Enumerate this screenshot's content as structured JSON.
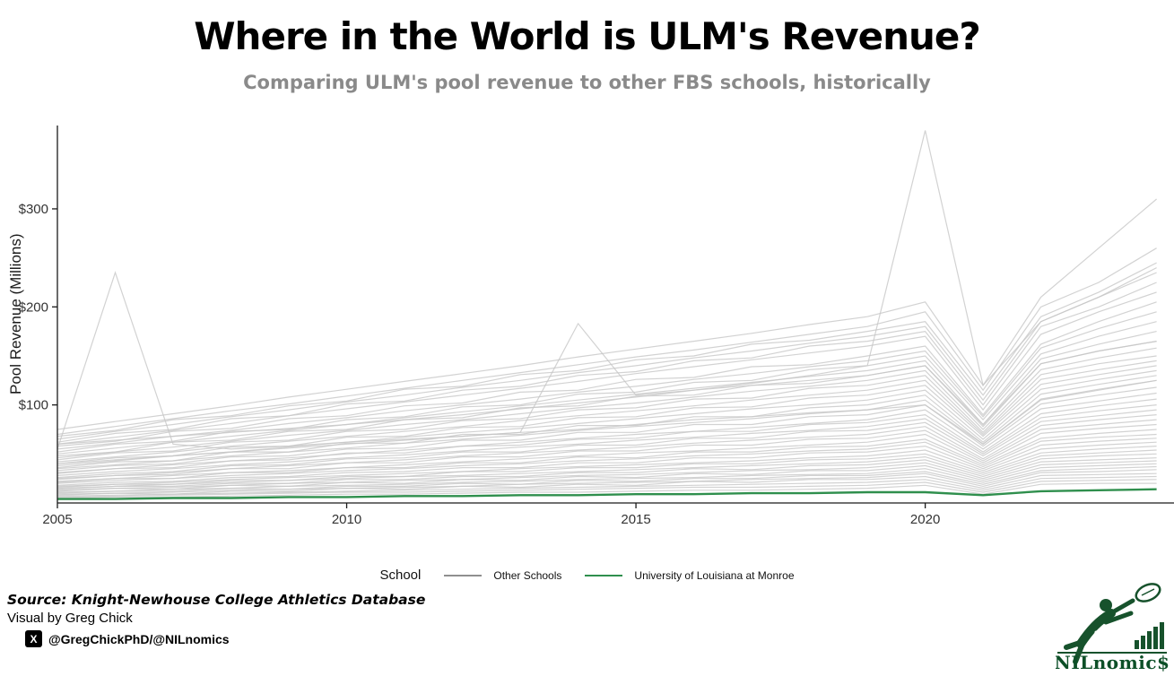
{
  "title": "Where in the World is ULM's Revenue?",
  "subtitle": "Comparing ULM's pool revenue to other FBS schools, historically",
  "legend": {
    "title": "School",
    "items": [
      {
        "label": "Other Schools"
      },
      {
        "label": "University of Louisiana at Monroe"
      }
    ]
  },
  "footer": {
    "source": "Source: Knight-Newhouse College Athletics Database",
    "credit": "Visual by Greg Chick",
    "social": "@GregChickPhD/@NILnomics"
  },
  "icons": {
    "x_logo_glyph": "X"
  },
  "logo": {
    "text": "NILnomic$",
    "dollar": "$",
    "color": "#17522c",
    "text_color": "#0c4f27"
  },
  "chart_data": {
    "type": "line",
    "title": "Where in the World is ULM's Revenue?",
    "xlabel": "",
    "ylabel": "Pool Revenue (Millions)",
    "x_range": [
      2005,
      2024.3
    ],
    "y_range": [
      0,
      385
    ],
    "grid": false,
    "legend_position": "bottom",
    "x_ticks": [
      2005,
      2010,
      2015,
      2020
    ],
    "x_tick_labels": [
      "2005",
      "2010",
      "2015",
      "2020"
    ],
    "y_tick_values": [
      100,
      200,
      300
    ],
    "y_tick_labels": [
      "$100",
      "$200",
      "$300"
    ],
    "colors": {
      "other_line": "#c7c7c7",
      "other_legend": "#8f8f8f",
      "ulm": "#2f8f4d",
      "axis": "#1a1a1a",
      "tick_text": "#333333"
    },
    "x": [
      2005,
      2006,
      2007,
      2008,
      2009,
      2010,
      2011,
      2012,
      2013,
      2014,
      2015,
      2016,
      2017,
      2018,
      2019,
      2020,
      2021,
      2022,
      2023,
      2024
    ],
    "ulm": {
      "name": "University of Louisiana at Monroe",
      "values": [
        4,
        4,
        5,
        5,
        6,
        6,
        7,
        7,
        8,
        8,
        9,
        9,
        10,
        10,
        11,
        11,
        8,
        12,
        13,
        14
      ]
    },
    "other_schools": [
      [
        75,
        83,
        91,
        99,
        108,
        116,
        124,
        132,
        140,
        149,
        157,
        165,
        173,
        182,
        190,
        205,
        120,
        210,
        260,
        310
      ],
      [
        70,
        78,
        86,
        94,
        101,
        109,
        117,
        125,
        133,
        141,
        149,
        156,
        164,
        172,
        180,
        195,
        115,
        200,
        225,
        260
      ],
      [
        68,
        74,
        85,
        89,
        99,
        104,
        116,
        119,
        131,
        135,
        146,
        150,
        162,
        166,
        175,
        185,
        110,
        190,
        215,
        245
      ],
      [
        65,
        73,
        80,
        88,
        95,
        103,
        110,
        118,
        125,
        133,
        140,
        148,
        155,
        163,
        170,
        180,
        105,
        185,
        210,
        235
      ],
      [
        62,
        71,
        75,
        86,
        89,
        101,
        104,
        115,
        119,
        130,
        134,
        145,
        148,
        160,
        165,
        175,
        100,
        180,
        200,
        225
      ],
      [
        60,
        67,
        74,
        81,
        89,
        96,
        103,
        110,
        117,
        124,
        132,
        139,
        146,
        153,
        160,
        170,
        95,
        172,
        195,
        215
      ],
      [
        58,
        63,
        73,
        76,
        86,
        89,
        99,
        102,
        113,
        115,
        126,
        128,
        139,
        141,
        150,
        160,
        90,
        162,
        185,
        205
      ],
      [
        55,
        61,
        68,
        74,
        81,
        87,
        94,
        100,
        106,
        113,
        119,
        126,
        132,
        139,
        145,
        155,
        88,
        158,
        178,
        195
      ],
      [
        52,
        60,
        63,
        73,
        75,
        85,
        88,
        98,
        100,
        111,
        113,
        123,
        125,
        136,
        140,
        150,
        85,
        152,
        170,
        185
      ],
      [
        50,
        56,
        62,
        68,
        74,
        80,
        87,
        93,
        99,
        105,
        111,
        117,
        123,
        129,
        135,
        145,
        80,
        147,
        162,
        175
      ],
      [
        48,
        52,
        62,
        64,
        73,
        75,
        85,
        87,
        97,
        99,
        109,
        110,
        120,
        122,
        130,
        140,
        78,
        142,
        155,
        165
      ],
      [
        46,
        52,
        57,
        63,
        69,
        74,
        80,
        85,
        91,
        97,
        102,
        108,
        114,
        119,
        125,
        135,
        75,
        136,
        148,
        158
      ],
      [
        44,
        51,
        53,
        62,
        64,
        73,
        75,
        84,
        86,
        95,
        97,
        106,
        107,
        117,
        120,
        130,
        72,
        131,
        142,
        150
      ],
      [
        42,
        47,
        52,
        58,
        63,
        68,
        73,
        78,
        84,
        89,
        94,
        99,
        105,
        110,
        115,
        125,
        70,
        126,
        136,
        145
      ],
      [
        40,
        46,
        48,
        57,
        58,
        67,
        68,
        77,
        78,
        87,
        88,
        97,
        98,
        107,
        110,
        120,
        68,
        121,
        131,
        140
      ],
      [
        38,
        43,
        48,
        52,
        57,
        62,
        67,
        72,
        76,
        81,
        86,
        91,
        96,
        100,
        105,
        115,
        65,
        116,
        126,
        135
      ],
      [
        36,
        42,
        43,
        52,
        52,
        61,
        61,
        70,
        70,
        79,
        79,
        88,
        88,
        97,
        100,
        110,
        62,
        111,
        121,
        130
      ],
      [
        35,
        39,
        43,
        48,
        52,
        56,
        61,
        65,
        69,
        74,
        78,
        82,
        86,
        91,
        95,
        105,
        60,
        106,
        116,
        125
      ],
      [
        33,
        38,
        40,
        47,
        48,
        55,
        56,
        64,
        64,
        72,
        72,
        80,
        80,
        88,
        90,
        100,
        58,
        101,
        110,
        118
      ],
      [
        31,
        35,
        39,
        43,
        46,
        50,
        54,
        58,
        62,
        66,
        70,
        73,
        77,
        81,
        85,
        95,
        55,
        96,
        104,
        112
      ],
      [
        30,
        35,
        36,
        43,
        44,
        51,
        51,
        58,
        59,
        65,
        66,
        73,
        73,
        80,
        82,
        90,
        52,
        91,
        99,
        106
      ],
      [
        28,
        32,
        35,
        39,
        42,
        46,
        49,
        53,
        57,
        60,
        64,
        67,
        71,
        74,
        78,
        86,
        50,
        87,
        94,
        100
      ],
      [
        26,
        30,
        32,
        38,
        39,
        45,
        46,
        52,
        52,
        59,
        59,
        66,
        66,
        73,
        74,
        82,
        48,
        83,
        89,
        95
      ],
      [
        25,
        28,
        31,
        35,
        38,
        41,
        44,
        48,
        51,
        54,
        57,
        61,
        64,
        67,
        70,
        78,
        45,
        79,
        85,
        90
      ],
      [
        24,
        28,
        29,
        35,
        35,
        41,
        41,
        47,
        47,
        53,
        53,
        59,
        59,
        65,
        66,
        74,
        43,
        75,
        80,
        85
      ],
      [
        22,
        25,
        28,
        31,
        33,
        36,
        39,
        42,
        45,
        48,
        51,
        53,
        56,
        59,
        62,
        70,
        41,
        71,
        76,
        80
      ],
      [
        21,
        25,
        25,
        31,
        31,
        36,
        36,
        41,
        41,
        47,
        46,
        52,
        52,
        57,
        58,
        65,
        39,
        66,
        71,
        75
      ],
      [
        20,
        23,
        25,
        28,
        30,
        33,
        35,
        38,
        40,
        43,
        45,
        48,
        50,
        53,
        55,
        62,
        37,
        63,
        67,
        70
      ],
      [
        18,
        21,
        22,
        26,
        27,
        31,
        32,
        36,
        36,
        41,
        41,
        46,
        46,
        51,
        52,
        58,
        35,
        59,
        63,
        66
      ],
      [
        17,
        19,
        21,
        24,
        26,
        28,
        30,
        32,
        35,
        37,
        39,
        41,
        43,
        46,
        48,
        54,
        33,
        55,
        59,
        62
      ],
      [
        16,
        19,
        19,
        23,
        23,
        27,
        27,
        32,
        32,
        36,
        36,
        40,
        40,
        44,
        45,
        50,
        31,
        51,
        55,
        58
      ],
      [
        15,
        17,
        19,
        21,
        23,
        25,
        27,
        28,
        30,
        32,
        34,
        36,
        38,
        40,
        42,
        47,
        29,
        48,
        51,
        54
      ],
      [
        14,
        17,
        17,
        20,
        20,
        24,
        24,
        27,
        27,
        31,
        31,
        35,
        34,
        38,
        39,
        44,
        27,
        45,
        48,
        50
      ],
      [
        13,
        15,
        16,
        18,
        20,
        21,
        23,
        24,
        26,
        28,
        29,
        31,
        33,
        34,
        36,
        41,
        25,
        42,
        44,
        46
      ],
      [
        12,
        15,
        14,
        18,
        17,
        21,
        20,
        24,
        23,
        27,
        26,
        30,
        29,
        33,
        33,
        38,
        23,
        39,
        41,
        43
      ],
      [
        11,
        12,
        14,
        15,
        17,
        18,
        19,
        21,
        22,
        24,
        25,
        26,
        28,
        29,
        30,
        35,
        21,
        36,
        38,
        40
      ],
      [
        10,
        12,
        12,
        15,
        14,
        17,
        17,
        20,
        19,
        23,
        22,
        25,
        25,
        28,
        28,
        32,
        19,
        33,
        35,
        37
      ],
      [
        9,
        10,
        11,
        13,
        14,
        15,
        16,
        17,
        19,
        20,
        21,
        22,
        24,
        25,
        26,
        30,
        17,
        31,
        32,
        34
      ],
      [
        8,
        10,
        9,
        12,
        12,
        15,
        14,
        17,
        16,
        19,
        18,
        22,
        21,
        24,
        24,
        27,
        15,
        28,
        29,
        30
      ],
      [
        7,
        8,
        9,
        10,
        11,
        12,
        13,
        14,
        15,
        16,
        17,
        18,
        19,
        20,
        21,
        24,
        13,
        25,
        26,
        27
      ],
      [
        6,
        7,
        8,
        9,
        10,
        11,
        11,
        12,
        13,
        14,
        15,
        16,
        16,
        17,
        18,
        21,
        11,
        22,
        23,
        24
      ],
      [
        5,
        6,
        6,
        7,
        8,
        9,
        9,
        10,
        11,
        11,
        12,
        13,
        13,
        14,
        15,
        18,
        9,
        19,
        20,
        20
      ],
      [
        55,
        235,
        60,
        55,
        58,
        62,
        65,
        68,
        72,
        75,
        80,
        85,
        88,
        92,
        95,
        100,
        60,
        105,
        115,
        125
      ],
      [
        60,
        64,
        68,
        72,
        76,
        80,
        85,
        90,
        96,
        102,
        108,
        115,
        122,
        130,
        140,
        380,
        120,
        185,
        210,
        240
      ],
      [
        40,
        44,
        48,
        52,
        56,
        60,
        64,
        68,
        72,
        183,
        110,
        115,
        120,
        125,
        130,
        140,
        80,
        142,
        155,
        165
      ]
    ]
  }
}
